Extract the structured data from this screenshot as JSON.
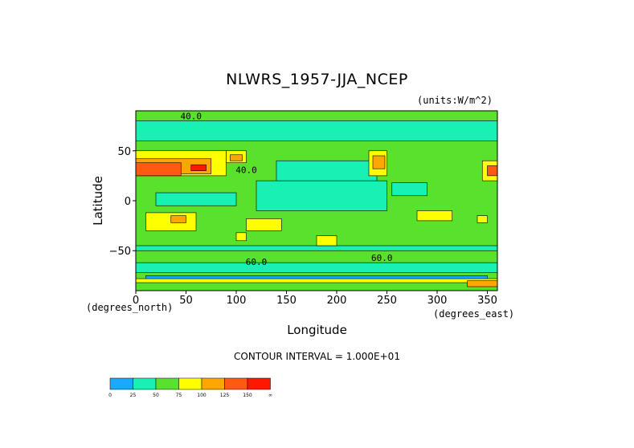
{
  "chart_data": {
    "type": "heatmap",
    "title": "NLWRS_1957-JJA_NCEP",
    "units": "(units:W/m^2)",
    "xlabel": "Longitude",
    "ylabel": "Latitude",
    "x_unit_left": "(degrees_north)",
    "x_unit_right": "(degrees_east)",
    "xlim": [
      0,
      360
    ],
    "ylim": [
      -90,
      90
    ],
    "x_ticks": [
      0,
      50,
      100,
      150,
      200,
      250,
      300,
      350
    ],
    "x_tick_labels": [
      "0",
      "50",
      "100",
      "150",
      "200",
      "250",
      "300",
      "350"
    ],
    "y_ticks": [
      50,
      0,
      -50
    ],
    "y_tick_labels": [
      "50",
      "0",
      "−50"
    ],
    "contour_interval_label": "CONTOUR INTERVAL = 1.000E+01",
    "contour_labels": [
      {
        "x": 55,
        "y": 84,
        "text": "40.0"
      },
      {
        "x": 110,
        "y": 30,
        "text": "40.0"
      },
      {
        "x": 120,
        "y": -62,
        "text": "60.0"
      },
      {
        "x": 245,
        "y": -58,
        "text": "60.0"
      }
    ],
    "colorbar": {
      "labels": [
        "0",
        "25",
        "50",
        "75",
        "100",
        "125",
        "150",
        "∞"
      ],
      "colors": [
        "#19aaff",
        "#19f0b4",
        "#59e12c",
        "#ffff00",
        "#ffa700",
        "#ff5a10",
        "#ff1800"
      ]
    },
    "regions": [
      {
        "level": 2,
        "lon": [
          0,
          360
        ],
        "lat": [
          -90,
          90
        ]
      },
      {
        "level": 1,
        "lon": [
          0,
          360
        ],
        "lat": [
          60,
          80
        ]
      },
      {
        "level": 1,
        "lon": [
          120,
          250
        ],
        "lat": [
          -10,
          20
        ]
      },
      {
        "level": 1,
        "lon": [
          140,
          240
        ],
        "lat": [
          20,
          40
        ]
      },
      {
        "level": 1,
        "lon": [
          20,
          100
        ],
        "lat": [
          -5,
          8
        ]
      },
      {
        "level": 1,
        "lon": [
          255,
          290
        ],
        "lat": [
          5,
          18
        ]
      },
      {
        "level": 1,
        "lon": [
          0,
          360
        ],
        "lat": [
          -72,
          -62
        ]
      },
      {
        "level": 1,
        "lon": [
          0,
          360
        ],
        "lat": [
          -50,
          -45
        ]
      },
      {
        "level": 0,
        "lon": [
          10,
          350
        ],
        "lat": [
          -80,
          -75
        ]
      },
      {
        "level": 3,
        "lon": [
          0,
          90
        ],
        "lat": [
          25,
          50
        ]
      },
      {
        "level": 4,
        "lon": [
          0,
          75
        ],
        "lat": [
          27,
          42
        ]
      },
      {
        "level": 5,
        "lon": [
          0,
          45
        ],
        "lat": [
          25,
          38
        ]
      },
      {
        "level": 6,
        "lon": [
          55,
          70
        ],
        "lat": [
          30,
          36
        ]
      },
      {
        "level": 3,
        "lon": [
          90,
          110
        ],
        "lat": [
          38,
          50
        ]
      },
      {
        "level": 4,
        "lon": [
          94,
          106
        ],
        "lat": [
          40,
          46
        ]
      },
      {
        "level": 3,
        "lon": [
          232,
          250
        ],
        "lat": [
          25,
          50
        ]
      },
      {
        "level": 4,
        "lon": [
          236,
          248
        ],
        "lat": [
          32,
          45
        ]
      },
      {
        "level": 3,
        "lon": [
          345,
          360
        ],
        "lat": [
          20,
          40
        ]
      },
      {
        "level": 5,
        "lon": [
          350,
          360
        ],
        "lat": [
          25,
          35
        ]
      },
      {
        "level": 3,
        "lon": [
          10,
          60
        ],
        "lat": [
          -30,
          -12
        ]
      },
      {
        "level": 4,
        "lon": [
          35,
          50
        ],
        "lat": [
          -22,
          -15
        ]
      },
      {
        "level": 3,
        "lon": [
          110,
          145
        ],
        "lat": [
          -30,
          -18
        ]
      },
      {
        "level": 3,
        "lon": [
          100,
          110
        ],
        "lat": [
          -40,
          -32
        ]
      },
      {
        "level": 3,
        "lon": [
          180,
          200
        ],
        "lat": [
          -45,
          -35
        ]
      },
      {
        "level": 3,
        "lon": [
          280,
          315
        ],
        "lat": [
          -20,
          -10
        ]
      },
      {
        "level": 3,
        "lon": [
          340,
          350
        ],
        "lat": [
          -22,
          -15
        ]
      },
      {
        "level": 3,
        "lon": [
          0,
          360
        ],
        "lat": [
          -82,
          -78
        ]
      },
      {
        "level": 4,
        "lon": [
          330,
          360
        ],
        "lat": [
          -86,
          -80
        ]
      }
    ]
  }
}
